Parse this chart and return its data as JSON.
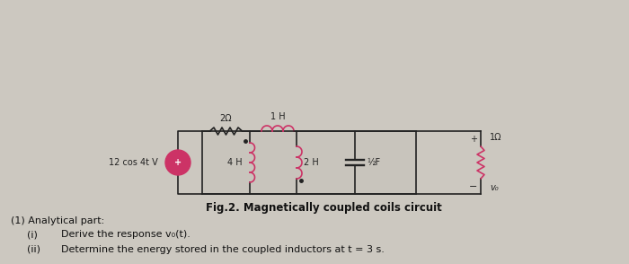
{
  "bg_color": "#ccc8c0",
  "fig_caption": "Fig.2. Magnetically coupled coils circuit",
  "text1": "(1) Analytical part:",
  "text2_i": "(i)",
  "text2_body": "Derive the response v₀(t).",
  "text3_i": "(ii)",
  "text3_body": "Determine the energy stored in the coupled inductors at t = 3 s.",
  "source_label": "12 cos 4t V",
  "r1_label": "2Ω",
  "l1_label": "4 H",
  "l_top_label": "1 H",
  "l2_label": "2 H",
  "c_label": "½F",
  "r2_label": "1Ω",
  "coil_color": "#cc3366",
  "wire_color": "#222222",
  "source_color": "#cc3366"
}
